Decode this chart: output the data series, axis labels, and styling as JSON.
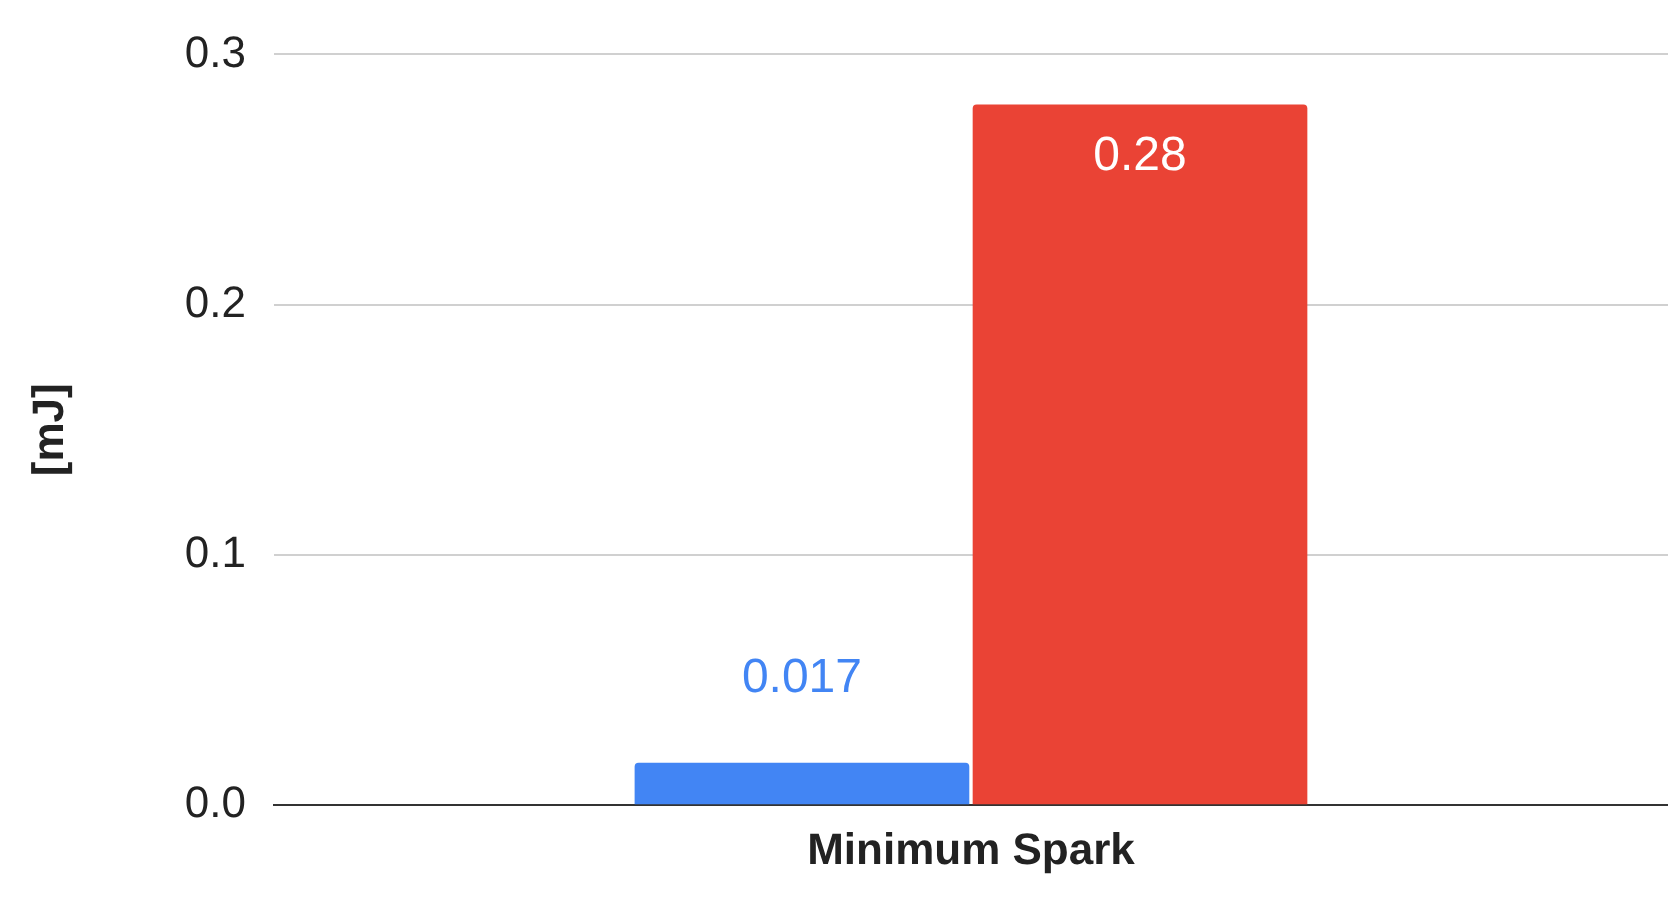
{
  "chart_data": {
    "type": "bar",
    "ylabel": "[mJ]",
    "categories": [
      "Minimum Spark"
    ],
    "series": [
      {
        "color": "#4285f4",
        "values": [
          0.017
        ]
      },
      {
        "color": "#ea4335",
        "values": [
          0.28
        ]
      }
    ],
    "ylim": [
      0,
      0.3
    ],
    "yticks": [
      {
        "value": 0,
        "label": "0.0"
      },
      {
        "value": 0.1,
        "label": "0.1"
      },
      {
        "value": 0.2,
        "label": "0.2"
      },
      {
        "value": 0.3,
        "label": "0.3"
      }
    ],
    "grid": "y",
    "legend": false,
    "data_labels": true
  }
}
